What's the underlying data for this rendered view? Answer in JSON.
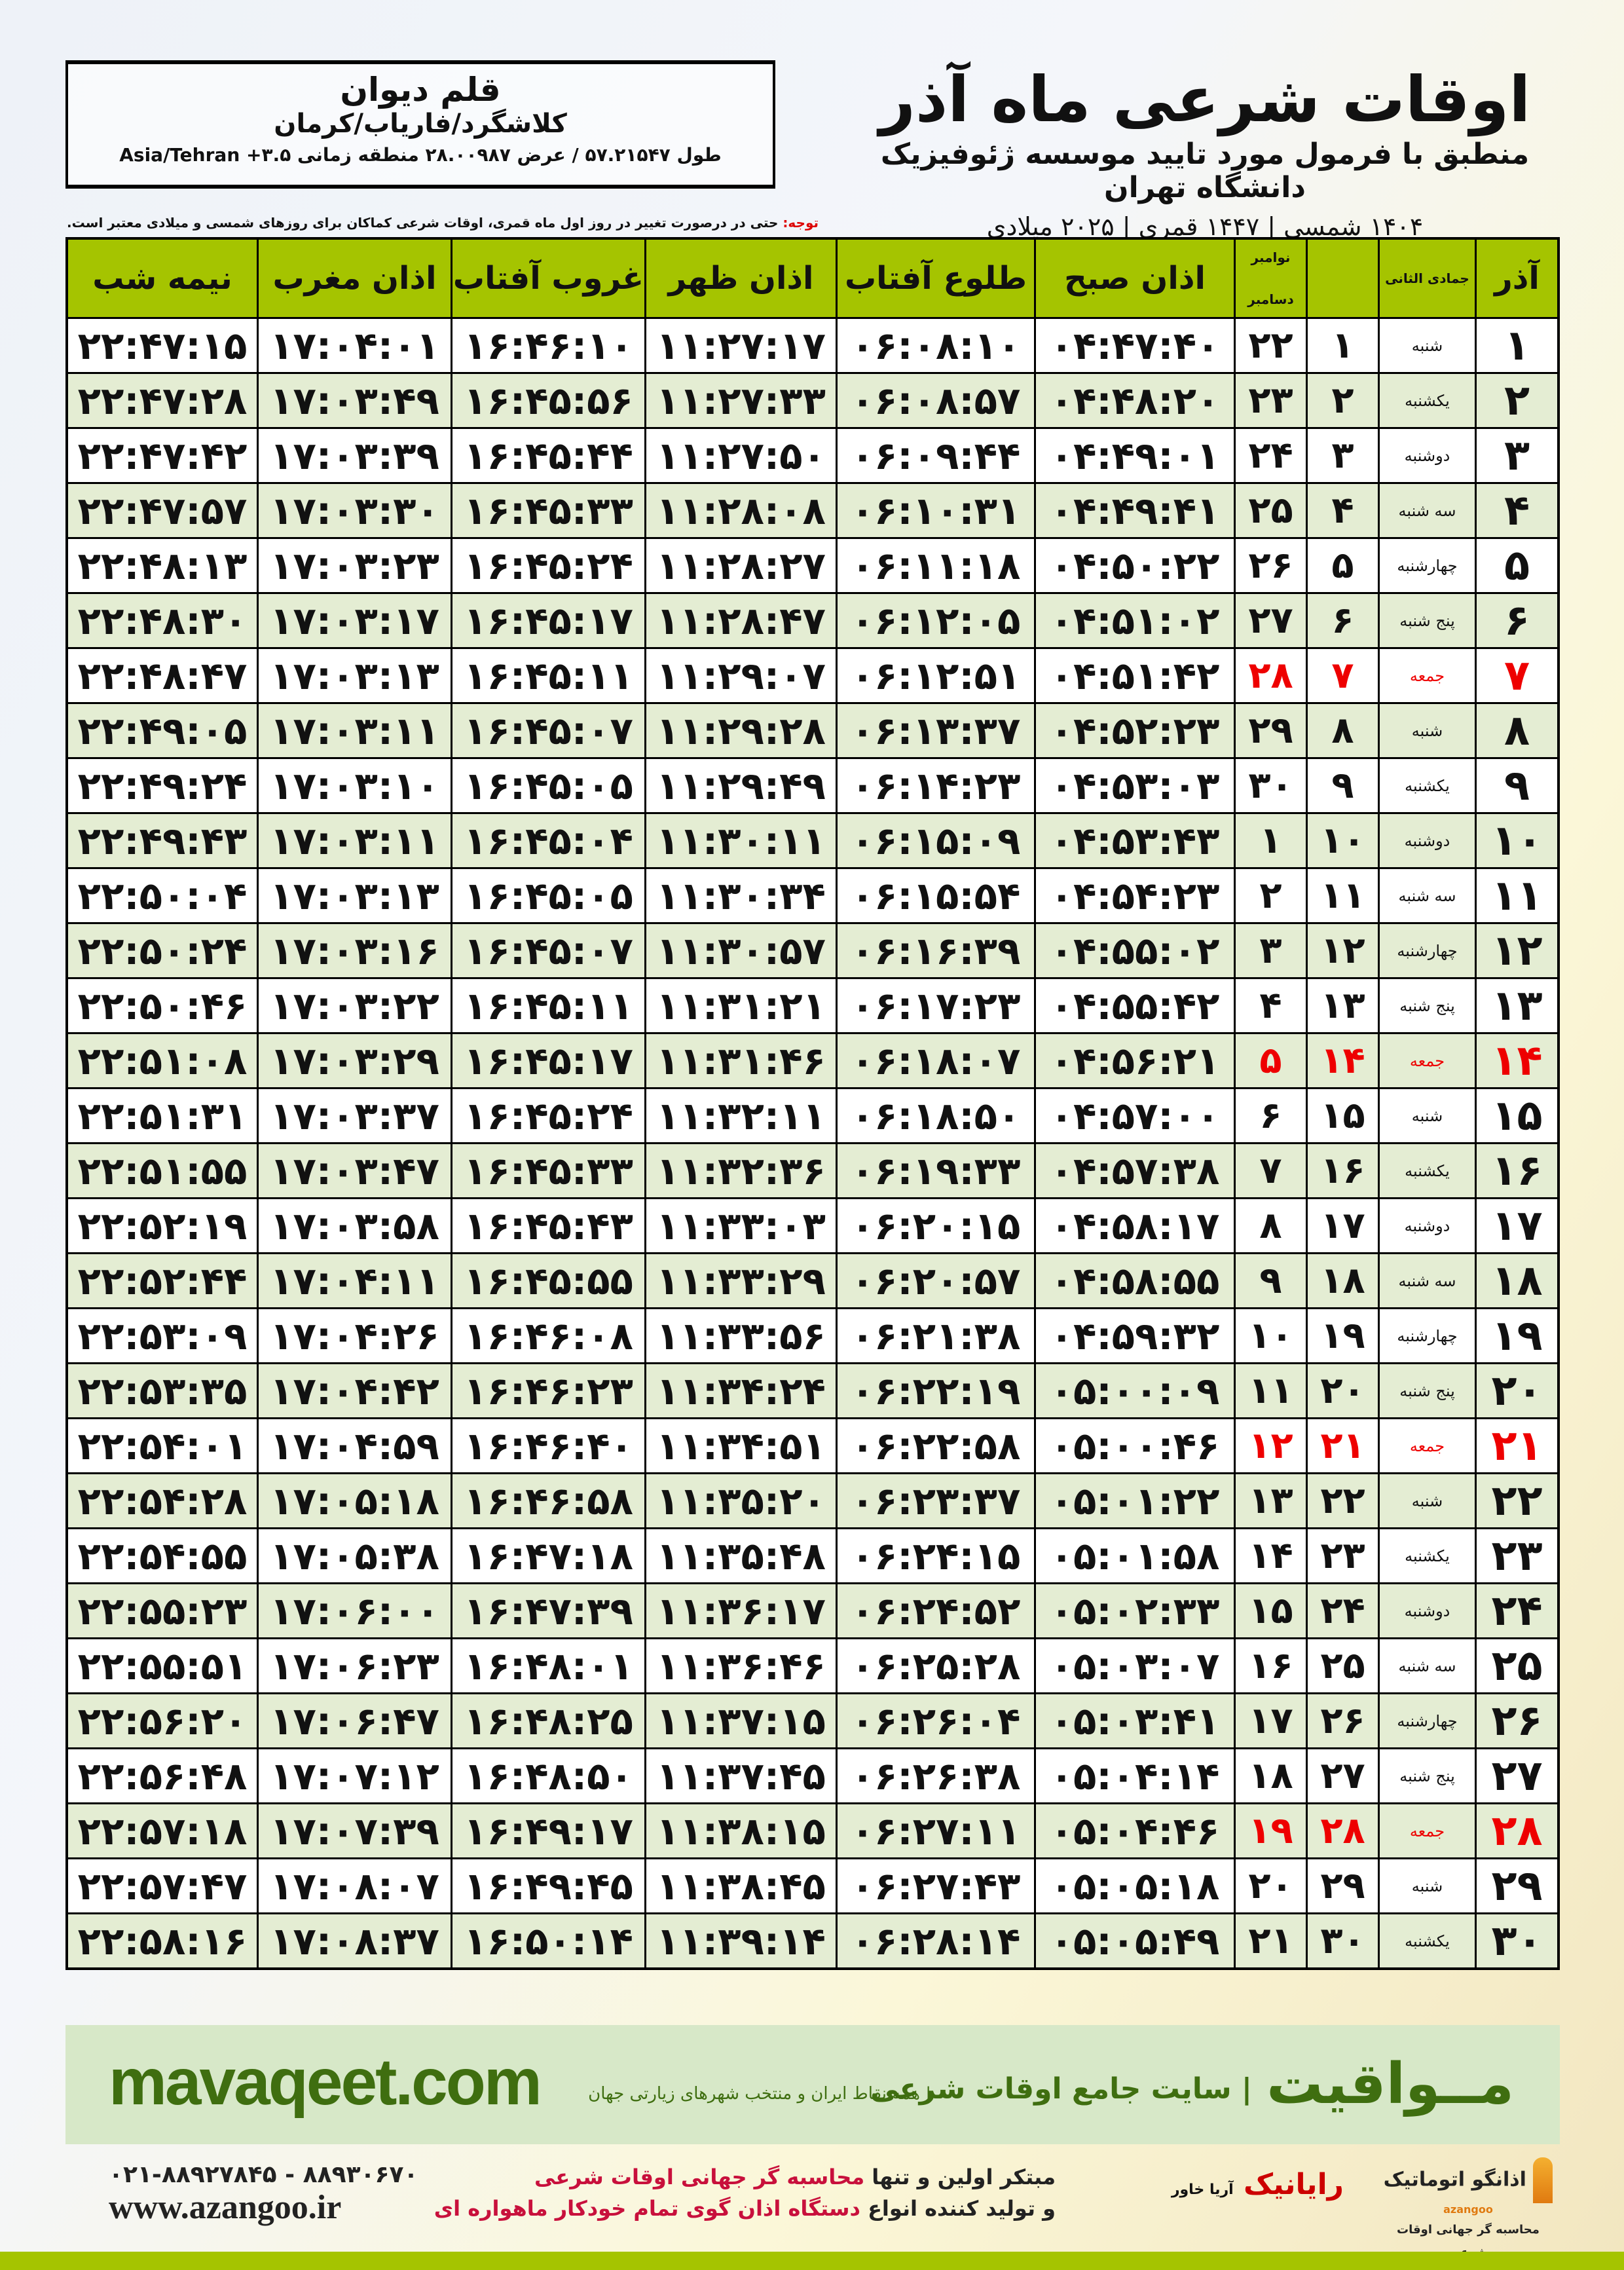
{
  "header": {
    "title": "اوقات شرعی ماه آذر",
    "subtitle": "منطبق با فرمول مورد تایید موسسه ژئوفیزیک دانشگاه تهران",
    "years": "۱۴۰۴ شمسی | ۱۴۴۷ قمری | ۲۰۲۵ میلادی"
  },
  "location": {
    "city": "قلم دیوان",
    "region": "کلاشگرد/فاریاب/کرمان",
    "coords": "طول ۵۷.۲۱۵۴۷ / عرض ۲۸.۰۰۹۸۷ منطقه زمانی ۳.۵+ Asia/Tehran"
  },
  "note": {
    "label": "توجه:",
    "text": " حتی در درصورت تغییر در روز اول ماه قمری، اوقات شرعی کماکان برای روزهای شمسی و میلادی معتبر است."
  },
  "columns": {
    "azar": "آذر",
    "qamari": "جمادی الثانی",
    "greg_top": "نوامبر",
    "greg_bottom": "دسامبر",
    "fajr": "اذان صبح",
    "sunrise": "طلوع آفتاب",
    "dhuhr": "اذان ظهر",
    "sunset": "غروب آفتاب",
    "maghrib": "اذان مغرب",
    "midnight": "نیمه شب"
  },
  "colors": {
    "header_green": "#a5c400",
    "friday": "#e00000",
    "alt_row": "#e4edd3"
  },
  "rows": [
    [
      "۱",
      "شنبه",
      "۱",
      "۲۲",
      "۰۴:۴۷:۴۰",
      "۰۶:۰۸:۱۰",
      "۱۱:۲۷:۱۷",
      "۱۶:۴۶:۱۰",
      "۱۷:۰۴:۰۱",
      "۲۲:۴۷:۱۵"
    ],
    [
      "۲",
      "یکشنبه",
      "۲",
      "۲۳",
      "۰۴:۴۸:۲۰",
      "۰۶:۰۸:۵۷",
      "۱۱:۲۷:۳۳",
      "۱۶:۴۵:۵۶",
      "۱۷:۰۳:۴۹",
      "۲۲:۴۷:۲۸"
    ],
    [
      "۳",
      "دوشنبه",
      "۳",
      "۲۴",
      "۰۴:۴۹:۰۱",
      "۰۶:۰۹:۴۴",
      "۱۱:۲۷:۵۰",
      "۱۶:۴۵:۴۴",
      "۱۷:۰۳:۳۹",
      "۲۲:۴۷:۴۲"
    ],
    [
      "۴",
      "سه شنبه",
      "۴",
      "۲۵",
      "۰۴:۴۹:۴۱",
      "۰۶:۱۰:۳۱",
      "۱۱:۲۸:۰۸",
      "۱۶:۴۵:۳۳",
      "۱۷:۰۳:۳۰",
      "۲۲:۴۷:۵۷"
    ],
    [
      "۵",
      "چهارشنبه",
      "۵",
      "۲۶",
      "۰۴:۵۰:۲۲",
      "۰۶:۱۱:۱۸",
      "۱۱:۲۸:۲۷",
      "۱۶:۴۵:۲۴",
      "۱۷:۰۳:۲۳",
      "۲۲:۴۸:۱۳"
    ],
    [
      "۶",
      "پنج شنبه",
      "۶",
      "۲۷",
      "۰۴:۵۱:۰۲",
      "۰۶:۱۲:۰۵",
      "۱۱:۲۸:۴۷",
      "۱۶:۴۵:۱۷",
      "۱۷:۰۳:۱۷",
      "۲۲:۴۸:۳۰"
    ],
    [
      "۷",
      "جمعه",
      "۷",
      "۲۸",
      "۰۴:۵۱:۴۲",
      "۰۶:۱۲:۵۱",
      "۱۱:۲۹:۰۷",
      "۱۶:۴۵:۱۱",
      "۱۷:۰۳:۱۳",
      "۲۲:۴۸:۴۷"
    ],
    [
      "۸",
      "شنبه",
      "۸",
      "۲۹",
      "۰۴:۵۲:۲۳",
      "۰۶:۱۳:۳۷",
      "۱۱:۲۹:۲۸",
      "۱۶:۴۵:۰۷",
      "۱۷:۰۳:۱۱",
      "۲۲:۴۹:۰۵"
    ],
    [
      "۹",
      "یکشنبه",
      "۹",
      "۳۰",
      "۰۴:۵۳:۰۳",
      "۰۶:۱۴:۲۳",
      "۱۱:۲۹:۴۹",
      "۱۶:۴۵:۰۵",
      "۱۷:۰۳:۱۰",
      "۲۲:۴۹:۲۴"
    ],
    [
      "۱۰",
      "دوشنبه",
      "۱۰",
      "۱",
      "۰۴:۵۳:۴۳",
      "۰۶:۱۵:۰۹",
      "۱۱:۳۰:۱۱",
      "۱۶:۴۵:۰۴",
      "۱۷:۰۳:۱۱",
      "۲۲:۴۹:۴۳"
    ],
    [
      "۱۱",
      "سه شنبه",
      "۱۱",
      "۲",
      "۰۴:۵۴:۲۳",
      "۰۶:۱۵:۵۴",
      "۱۱:۳۰:۳۴",
      "۱۶:۴۵:۰۵",
      "۱۷:۰۳:۱۳",
      "۲۲:۵۰:۰۴"
    ],
    [
      "۱۲",
      "چهارشنبه",
      "۱۲",
      "۳",
      "۰۴:۵۵:۰۲",
      "۰۶:۱۶:۳۹",
      "۱۱:۳۰:۵۷",
      "۱۶:۴۵:۰۷",
      "۱۷:۰۳:۱۶",
      "۲۲:۵۰:۲۴"
    ],
    [
      "۱۳",
      "پنج شنبه",
      "۱۳",
      "۴",
      "۰۴:۵۵:۴۲",
      "۰۶:۱۷:۲۳",
      "۱۱:۳۱:۲۱",
      "۱۶:۴۵:۱۱",
      "۱۷:۰۳:۲۲",
      "۲۲:۵۰:۴۶"
    ],
    [
      "۱۴",
      "جمعه",
      "۱۴",
      "۵",
      "۰۴:۵۶:۲۱",
      "۰۶:۱۸:۰۷",
      "۱۱:۳۱:۴۶",
      "۱۶:۴۵:۱۷",
      "۱۷:۰۳:۲۹",
      "۲۲:۵۱:۰۸"
    ],
    [
      "۱۵",
      "شنبه",
      "۱۵",
      "۶",
      "۰۴:۵۷:۰۰",
      "۰۶:۱۸:۵۰",
      "۱۱:۳۲:۱۱",
      "۱۶:۴۵:۲۴",
      "۱۷:۰۳:۳۷",
      "۲۲:۵۱:۳۱"
    ],
    [
      "۱۶",
      "یکشنبه",
      "۱۶",
      "۷",
      "۰۴:۵۷:۳۸",
      "۰۶:۱۹:۳۳",
      "۱۱:۳۲:۳۶",
      "۱۶:۴۵:۳۳",
      "۱۷:۰۳:۴۷",
      "۲۲:۵۱:۵۵"
    ],
    [
      "۱۷",
      "دوشنبه",
      "۱۷",
      "۸",
      "۰۴:۵۸:۱۷",
      "۰۶:۲۰:۱۵",
      "۱۱:۳۳:۰۳",
      "۱۶:۴۵:۴۳",
      "۱۷:۰۳:۵۸",
      "۲۲:۵۲:۱۹"
    ],
    [
      "۱۸",
      "سه شنبه",
      "۱۸",
      "۹",
      "۰۴:۵۸:۵۵",
      "۰۶:۲۰:۵۷",
      "۱۱:۳۳:۲۹",
      "۱۶:۴۵:۵۵",
      "۱۷:۰۴:۱۱",
      "۲۲:۵۲:۴۴"
    ],
    [
      "۱۹",
      "چهارشنبه",
      "۱۹",
      "۱۰",
      "۰۴:۵۹:۳۲",
      "۰۶:۲۱:۳۸",
      "۱۱:۳۳:۵۶",
      "۱۶:۴۶:۰۸",
      "۱۷:۰۴:۲۶",
      "۲۲:۵۳:۰۹"
    ],
    [
      "۲۰",
      "پنج شنبه",
      "۲۰",
      "۱۱",
      "۰۵:۰۰:۰۹",
      "۰۶:۲۲:۱۹",
      "۱۱:۳۴:۲۴",
      "۱۶:۴۶:۲۳",
      "۱۷:۰۴:۴۲",
      "۲۲:۵۳:۳۵"
    ],
    [
      "۲۱",
      "جمعه",
      "۲۱",
      "۱۲",
      "۰۵:۰۰:۴۶",
      "۰۶:۲۲:۵۸",
      "۱۱:۳۴:۵۱",
      "۱۶:۴۶:۴۰",
      "۱۷:۰۴:۵۹",
      "۲۲:۵۴:۰۱"
    ],
    [
      "۲۲",
      "شنبه",
      "۲۲",
      "۱۳",
      "۰۵:۰۱:۲۲",
      "۰۶:۲۳:۳۷",
      "۱۱:۳۵:۲۰",
      "۱۶:۴۶:۵۸",
      "۱۷:۰۵:۱۸",
      "۲۲:۵۴:۲۸"
    ],
    [
      "۲۳",
      "یکشنبه",
      "۲۳",
      "۱۴",
      "۰۵:۰۱:۵۸",
      "۰۶:۲۴:۱۵",
      "۱۱:۳۵:۴۸",
      "۱۶:۴۷:۱۸",
      "۱۷:۰۵:۳۸",
      "۲۲:۵۴:۵۵"
    ],
    [
      "۲۴",
      "دوشنبه",
      "۲۴",
      "۱۵",
      "۰۵:۰۲:۳۳",
      "۰۶:۲۴:۵۲",
      "۱۱:۳۶:۱۷",
      "۱۶:۴۷:۳۹",
      "۱۷:۰۶:۰۰",
      "۲۲:۵۵:۲۳"
    ],
    [
      "۲۵",
      "سه شنبه",
      "۲۵",
      "۱۶",
      "۰۵:۰۳:۰۷",
      "۰۶:۲۵:۲۸",
      "۱۱:۳۶:۴۶",
      "۱۶:۴۸:۰۱",
      "۱۷:۰۶:۲۳",
      "۲۲:۵۵:۵۱"
    ],
    [
      "۲۶",
      "چهارشنبه",
      "۲۶",
      "۱۷",
      "۰۵:۰۳:۴۱",
      "۰۶:۲۶:۰۴",
      "۱۱:۳۷:۱۵",
      "۱۶:۴۸:۲۵",
      "۱۷:۰۶:۴۷",
      "۲۲:۵۶:۲۰"
    ],
    [
      "۲۷",
      "پنج شنبه",
      "۲۷",
      "۱۸",
      "۰۵:۰۴:۱۴",
      "۰۶:۲۶:۳۸",
      "۱۱:۳۷:۴۵",
      "۱۶:۴۸:۵۰",
      "۱۷:۰۷:۱۲",
      "۲۲:۵۶:۴۸"
    ],
    [
      "۲۸",
      "جمعه",
      "۲۸",
      "۱۹",
      "۰۵:۰۴:۴۶",
      "۰۶:۲۷:۱۱",
      "۱۱:۳۸:۱۵",
      "۱۶:۴۹:۱۷",
      "۱۷:۰۷:۳۹",
      "۲۲:۵۷:۱۸"
    ],
    [
      "۲۹",
      "شنبه",
      "۲۹",
      "۲۰",
      "۰۵:۰۵:۱۸",
      "۰۶:۲۷:۴۳",
      "۱۱:۳۸:۴۵",
      "۱۶:۴۹:۴۵",
      "۱۷:۰۸:۰۷",
      "۲۲:۵۷:۴۷"
    ],
    [
      "۳۰",
      "یکشنبه",
      "۳۰",
      "۲۱",
      "۰۵:۰۵:۴۹",
      "۰۶:۲۸:۱۴",
      "۱۱:۳۹:۱۴",
      "۱۶:۵۰:۱۴",
      "۱۷:۰۸:۳۷",
      "۲۲:۵۸:۱۶"
    ]
  ],
  "ad": {
    "brand": "مــواقیت",
    "slogan": "| سایت جامع اوقات شرعی",
    "tagline": "| همه نقاط ایران و منتخب شهرهای زیارتی جهان",
    "url": "mavaqeet.com"
  },
  "footer": {
    "logo1": "اذانگو اتوماتیک",
    "logo1_sub": "محاسبه گر جهانی اوقات شرعی",
    "logo1_en": "azangoo",
    "logo2": "رایانیک",
    "logo2_sub": "آریا خاور",
    "promo_1a": "مبتکر اولین و تنها ",
    "promo_1b": "محاسبه گر جهانی اوقات شرعی",
    "promo_2a": "و تولید کننده انواع ",
    "promo_2b": "دستگاه اذان گوی تمام خودکار ماهواره ای",
    "tel": "۰۲۱-۸۸۹۲۷۸۴۵ - ۸۸۹۳۰۶۷۰",
    "web": "www.azangoo.ir"
  }
}
